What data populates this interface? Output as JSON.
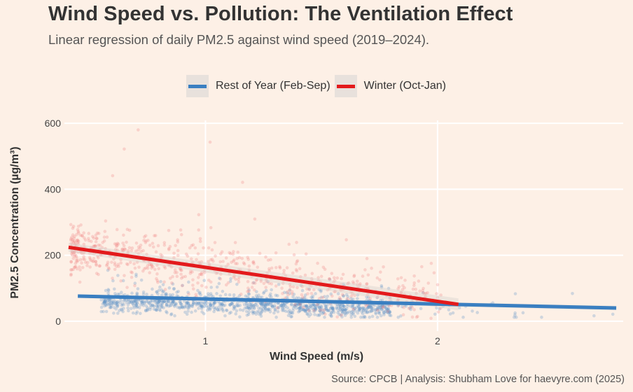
{
  "chart_data": {
    "type": "scatter",
    "title": "Wind Speed vs. Pollution: The Ventilation Effect",
    "subtitle": "Linear regression of daily PM2.5 against wind speed (2019–2024).",
    "xlabel": "Wind Speed (m/s)",
    "ylabel": "PM2.5 Concentration (µg/m³)",
    "caption": "Source: CPCB | Analysis: Shubham Love for haevyre.com (2025)",
    "xlim": [
      0.35,
      2.8
    ],
    "ylim": [
      -30,
      630
    ],
    "xticks": [
      1,
      2
    ],
    "yticks": [
      0,
      200,
      400,
      600
    ],
    "grid": true,
    "legend_position": "top",
    "series": [
      {
        "name": "Rest of Year (Feb-Sep)",
        "color": "#3a7fc1",
        "point_color": "#5b8fc7",
        "fit": {
          "x": [
            0.45,
            2.77
          ],
          "y": [
            76,
            40
          ]
        },
        "points_summary": {
          "x_range": [
            0.45,
            2.8
          ],
          "y_range": [
            10,
            200
          ],
          "n_approx": 1100,
          "center": {
            "x": 1.2,
            "y": 55
          }
        }
      },
      {
        "name": "Winter (Oct-Jan)",
        "color": "#e31a1c",
        "point_color": "#f08080",
        "fit": {
          "x": [
            0.41,
            2.09
          ],
          "y": [
            224,
            51
          ]
        },
        "points_summary": {
          "x_range": [
            0.4,
            2.1
          ],
          "y_range": [
            10,
            580
          ],
          "n_approx": 700,
          "center": {
            "x": 0.85,
            "y": 180
          }
        }
      }
    ],
    "notable_points": [
      {
        "series": "Winter (Oct-Jan)",
        "x": 0.71,
        "y": 580
      },
      {
        "series": "Winter (Oct-Jan)",
        "x": 0.65,
        "y": 522
      },
      {
        "series": "Winter (Oct-Jan)",
        "x": 1.02,
        "y": 543
      },
      {
        "series": "Winter (Oct-Jan)",
        "x": 1.16,
        "y": 421
      },
      {
        "series": "Winter (Oct-Jan)",
        "x": 0.6,
        "y": 441
      }
    ]
  }
}
